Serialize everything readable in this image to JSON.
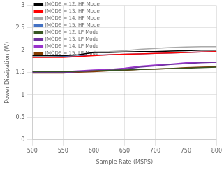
{
  "chart_data": {
    "type": "line",
    "xlabel": "Sample Rate (MSPS)",
    "ylabel": "Power Dissipation (W)",
    "x": [
      500,
      525,
      550,
      575,
      600,
      625,
      650,
      675,
      700,
      725,
      750,
      775,
      800
    ],
    "series": [
      {
        "name": "JMODE = 12, HP Mode",
        "color": "#000000",
        "values": [
          1.88,
          1.88,
          1.88,
          1.9,
          1.95,
          1.95,
          1.96,
          1.97,
          1.97,
          1.98,
          1.99,
          2.0,
          2.0
        ]
      },
      {
        "name": "JMODE = 13, HP Mode",
        "color": "#FF0000",
        "values": [
          1.84,
          1.84,
          1.84,
          1.86,
          1.88,
          1.9,
          1.91,
          1.92,
          1.93,
          1.94,
          1.95,
          1.96,
          1.97
        ]
      },
      {
        "name": "JMODE = 14, HP Mode",
        "color": "#AAAAAA",
        "values": [
          1.88,
          1.88,
          1.88,
          1.9,
          1.96,
          1.97,
          1.99,
          2.02,
          2.04,
          2.06,
          2.07,
          2.08,
          2.08
        ]
      },
      {
        "name": "JMODE = 15, HP Mode",
        "color": "#4472C4",
        "values": [
          1.85,
          1.85,
          1.86,
          1.87,
          1.89,
          1.9,
          1.91,
          1.92,
          1.93,
          1.94,
          1.95,
          1.96,
          1.97
        ]
      },
      {
        "name": "JMODE = 12, LP Mode",
        "color": "#375623",
        "values": [
          1.52,
          1.52,
          1.52,
          1.53,
          1.54,
          1.55,
          1.56,
          1.57,
          1.58,
          1.59,
          1.6,
          1.61,
          1.62
        ]
      },
      {
        "name": "JMODE = 13, LP Mode",
        "color": "#7030A0",
        "values": [
          1.5,
          1.5,
          1.5,
          1.52,
          1.54,
          1.55,
          1.58,
          1.62,
          1.65,
          1.68,
          1.7,
          1.72,
          1.73
        ]
      },
      {
        "name": "JMODE = 14, LP Mode",
        "color": "#9933CC",
        "values": [
          1.52,
          1.52,
          1.52,
          1.54,
          1.56,
          1.57,
          1.6,
          1.64,
          1.67,
          1.69,
          1.72,
          1.73,
          1.73
        ]
      },
      {
        "name": "JMODE = 15, LP Mode",
        "color": "#833C00",
        "values": [
          1.49,
          1.49,
          1.49,
          1.51,
          1.52,
          1.54,
          1.55,
          1.57,
          1.58,
          1.59,
          1.61,
          1.62,
          1.63
        ]
      }
    ],
    "xlim": [
      500,
      800
    ],
    "ylim": [
      0,
      3
    ],
    "xticks": [
      500,
      550,
      600,
      650,
      700,
      750,
      800
    ],
    "yticks": [
      0,
      0.5,
      1,
      1.5,
      2,
      2.5,
      3
    ],
    "grid": true,
    "legend": "upper left"
  }
}
